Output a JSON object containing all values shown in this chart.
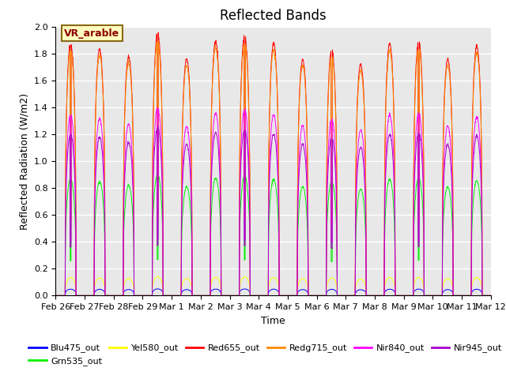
{
  "title": "Reflected Bands",
  "xlabel": "Time",
  "ylabel": "Reflected Radiation (W/m2)",
  "annotation_text": "VR_arable",
  "annotation_color": "#8B0000",
  "annotation_bg": "#FFFFC0",
  "annotation_border": "#8B6914",
  "ylim": [
    0.0,
    2.0
  ],
  "series": [
    {
      "label": "Blu475_out",
      "color": "#0000FF",
      "peak": 0.05
    },
    {
      "label": "Grn535_out",
      "color": "#00EE00",
      "peak": 0.9
    },
    {
      "label": "Yel580_out",
      "color": "#FFFF00",
      "peak": 0.14
    },
    {
      "label": "Red655_out",
      "color": "#FF0000",
      "peak": 1.95
    },
    {
      "label": "Redg715_out",
      "color": "#FF8800",
      "peak": 1.9
    },
    {
      "label": "Nir840_out",
      "color": "#FF00FF",
      "peak": 1.4
    },
    {
      "label": "Nir945_out",
      "color": "#AA00CC",
      "peak": 1.25
    }
  ],
  "n_days": 15,
  "day_labels": [
    "Feb 26",
    "Feb 27",
    "Feb 28",
    "Feb 29",
    "Mar 1",
    "Mar 2",
    "Mar 3",
    "Mar 4",
    "Mar 5",
    "Mar 6",
    "Mar 7",
    "Mar 8",
    "Mar 9",
    "Mar 10",
    "Mar 11",
    "Mar 12"
  ],
  "background_color": "#E8E8E8",
  "grid_color": "#FFFFFF",
  "title_fontsize": 12,
  "label_fontsize": 9,
  "tick_fontsize": 8,
  "day_peak_fracs": [
    0.96,
    0.94,
    0.91,
    1.0,
    0.9,
    0.97,
    0.99,
    0.96,
    0.9,
    0.94,
    0.88,
    0.96,
    0.97,
    0.9,
    0.95
  ],
  "day_start": 0.33,
  "day_end": 0.7,
  "pts_per_day": 144
}
